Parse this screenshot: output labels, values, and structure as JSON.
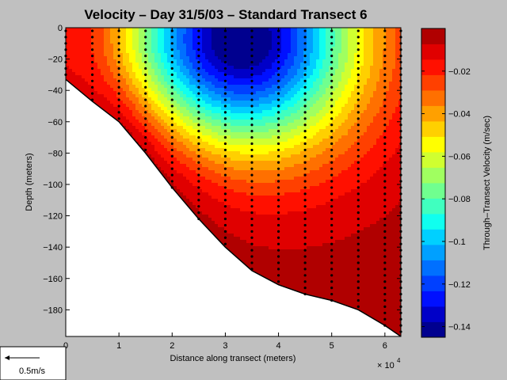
{
  "chart_data": {
    "type": "heatmap",
    "title": "Velocity – Day 31/5/03 – Standard Transect 6",
    "xlabel": "Distance along transect (meters)",
    "ylabel": "Depth (meters)",
    "x_exponent_label": "× 10",
    "x_exponent_power": "4",
    "xlim": [
      0,
      6.3
    ],
    "ylim": [
      -197,
      0
    ],
    "x_ticks": [
      0,
      1,
      2,
      3,
      4,
      5,
      6
    ],
    "y_ticks": [
      0,
      -20,
      -40,
      -60,
      -80,
      -100,
      -120,
      -140,
      -160,
      -180
    ],
    "x_tick_labels": [
      "0",
      "1",
      "2",
      "3",
      "4",
      "5",
      "6"
    ],
    "y_tick_labels": [
      "0",
      "−20",
      "−40",
      "−60",
      "−80",
      "−100",
      "−120",
      "−140",
      "−160",
      "−180"
    ],
    "colorbar": {
      "label": "Through–Transect Velocity (m/sec)",
      "range": [
        -0.145,
        0
      ],
      "ticks": [
        -0.02,
        -0.04,
        -0.06,
        -0.08,
        -0.1,
        -0.12,
        -0.14
      ],
      "tick_labels": [
        "−0.02",
        "−0.04",
        "−0.06",
        "−0.08",
        "−0.1",
        "−0.12",
        "−0.14"
      ],
      "levels": 20,
      "colors": [
        "#00008f",
        "#0000c8",
        "#0010ff",
        "#0040ff",
        "#0070ff",
        "#00a0ff",
        "#00d0ff",
        "#10ffef",
        "#40ffbf",
        "#70ff8f",
        "#a0ff60",
        "#d0ff30",
        "#ffff00",
        "#ffd000",
        "#ffa000",
        "#ff7000",
        "#ff4000",
        "#ff1000",
        "#e00000",
        "#b00000"
      ]
    },
    "bottom": {
      "x": [
        0,
        0.5,
        1,
        1.5,
        2,
        2.5,
        3,
        3.5,
        4,
        4.5,
        5,
        5.5,
        6,
        6.3
      ],
      "depth": [
        -33,
        -47,
        -60,
        -80,
        -102,
        -122,
        -140,
        -155,
        -164,
        -170,
        -174,
        -180,
        -190,
        -197
      ]
    },
    "stations_x": [
      0,
      0.5,
      1,
      1.5,
      2,
      2.5,
      3,
      3.5,
      4,
      4.5,
      5,
      5.5,
      6,
      6.3
    ],
    "velocity_field": {
      "core_x": 3.3,
      "core_depth": -10,
      "core_value": -0.145,
      "nearshore_value": -0.015,
      "bottom_value": -0.005
    }
  },
  "legend_box": {
    "scale_label": "0.5m/s"
  }
}
